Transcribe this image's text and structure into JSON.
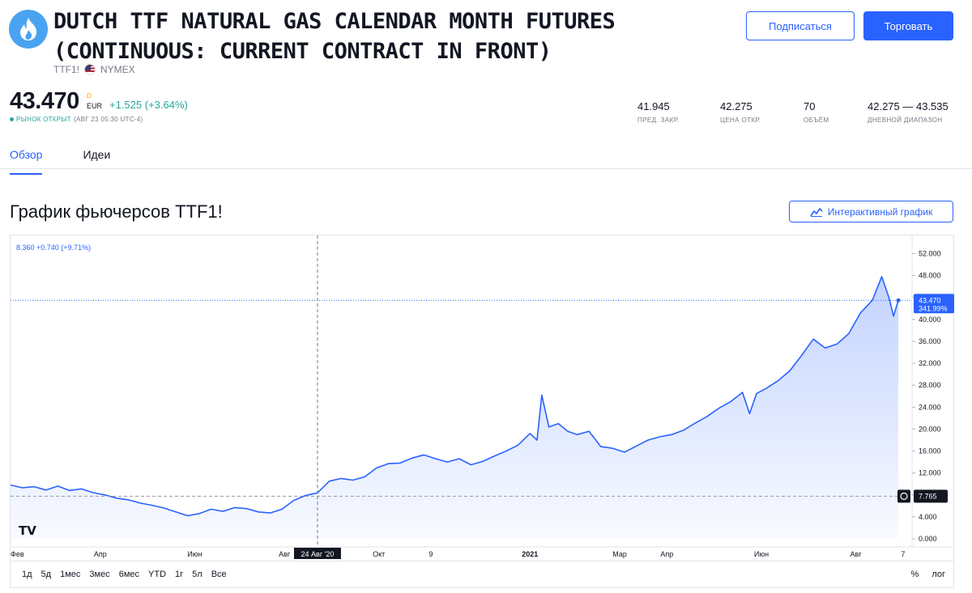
{
  "header": {
    "title": "DUTCH TTF NATURAL GAS CALENDAR MONTH FUTURES (CONTINUOUS: CURRENT CONTRACT IN FRONT)",
    "symbol": "TTF1!",
    "exchange": "NYMEX",
    "subscribe_label": "Подписаться",
    "trade_label": "Торговать"
  },
  "quote": {
    "price": "43.470",
    "currency_marker": "D",
    "currency": "EUR",
    "change": "+1.525 (+3.64%)",
    "market_status": "РЫНОК ОТКРЫТ",
    "market_time": "(АВГ 23 05:30 UTC-4)"
  },
  "stats": [
    {
      "value": "41.945",
      "label": "ПРЕД. ЗАКР."
    },
    {
      "value": "42.275",
      "label": "ЦЕНА ОТКР."
    },
    {
      "value": "70",
      "label": "ОБЪЁМ"
    },
    {
      "value": "42.275 — 43.535",
      "label": "ДНЕВНОЙ ДИАПАЗОН"
    }
  ],
  "tabs": [
    {
      "label": "Обзор",
      "active": true
    },
    {
      "label": "Идеи",
      "active": false
    }
  ],
  "chart_section": {
    "title": "График фьючерсов TTF1!",
    "interactive_label": "Интерактивный график",
    "crosshair_readout": "8.360 +0.740 (+9.71%)",
    "crosshair_date_label": "24 Авг '20",
    "last_price_label": "43.470",
    "last_pct_label": "341.99%",
    "baseline_label": "7.765"
  },
  "range_buttons": [
    "1д",
    "5д",
    "1мес",
    "3мес",
    "6мес",
    "YTD",
    "1г",
    "5л",
    "Все"
  ],
  "scale_buttons": [
    "%",
    "лог"
  ],
  "colors": {
    "accent": "#2962ff",
    "positive": "#26a69a",
    "line": "#2962ff",
    "logo": "#4aa3f0"
  },
  "chart_data": {
    "type": "area",
    "title": "",
    "xlabel": "",
    "ylabel": "",
    "ylim": [
      0,
      54
    ],
    "grid": false,
    "y_ticks": [
      "0.000",
      "4.000",
      "8.000",
      "12.000",
      "16.000",
      "20.000",
      "24.000",
      "28.000",
      "32.000",
      "36.000",
      "40.000",
      "44.000",
      "48.000",
      "52.000"
    ],
    "x_ticks": [
      {
        "label": "Фев",
        "t": 0
      },
      {
        "label": "Апр",
        "t": 1.9
      },
      {
        "label": "Июн",
        "t": 3.9
      },
      {
        "label": "Авг",
        "t": 5.8
      },
      {
        "label": "Окт",
        "t": 7.8
      },
      {
        "label": "9",
        "t": 8.9
      },
      {
        "label": "2021",
        "t": 11.0
      },
      {
        "label": "Мар",
        "t": 12.9
      },
      {
        "label": "Апр",
        "t": 13.9
      },
      {
        "label": "Июн",
        "t": 15.9
      },
      {
        "label": "Авг",
        "t": 17.9
      },
      {
        "label": "7",
        "t": 18.9
      }
    ],
    "series": [
      {
        "points": [
          [
            0.0,
            9.8
          ],
          [
            0.25,
            9.3
          ],
          [
            0.5,
            9.5
          ],
          [
            0.75,
            8.9
          ],
          [
            1.0,
            9.6
          ],
          [
            1.25,
            8.8
          ],
          [
            1.5,
            9.1
          ],
          [
            1.75,
            8.4
          ],
          [
            2.0,
            8.0
          ],
          [
            2.25,
            7.4
          ],
          [
            2.5,
            7.1
          ],
          [
            2.75,
            6.5
          ],
          [
            3.0,
            6.1
          ],
          [
            3.25,
            5.6
          ],
          [
            3.5,
            4.9
          ],
          [
            3.75,
            4.2
          ],
          [
            4.0,
            4.6
          ],
          [
            4.25,
            5.4
          ],
          [
            4.5,
            5.0
          ],
          [
            4.75,
            5.7
          ],
          [
            5.0,
            5.5
          ],
          [
            5.25,
            4.9
          ],
          [
            5.5,
            4.7
          ],
          [
            5.75,
            5.4
          ],
          [
            6.0,
            7.0
          ],
          [
            6.25,
            7.9
          ],
          [
            6.5,
            8.36
          ],
          [
            6.75,
            10.5
          ],
          [
            7.0,
            11.0
          ],
          [
            7.25,
            10.7
          ],
          [
            7.5,
            11.3
          ],
          [
            7.75,
            12.9
          ],
          [
            8.0,
            13.7
          ],
          [
            8.25,
            13.8
          ],
          [
            8.5,
            14.7
          ],
          [
            8.75,
            15.3
          ],
          [
            9.0,
            14.6
          ],
          [
            9.25,
            14.0
          ],
          [
            9.5,
            14.6
          ],
          [
            9.75,
            13.5
          ],
          [
            10.0,
            14.1
          ],
          [
            10.25,
            15.1
          ],
          [
            10.5,
            16.0
          ],
          [
            10.75,
            17.1
          ],
          [
            11.0,
            19.2
          ],
          [
            11.15,
            18.0
          ],
          [
            11.25,
            26.2
          ],
          [
            11.4,
            20.4
          ],
          [
            11.6,
            21.0
          ],
          [
            11.8,
            19.6
          ],
          [
            12.0,
            19.0
          ],
          [
            12.25,
            19.6
          ],
          [
            12.5,
            16.8
          ],
          [
            12.75,
            16.5
          ],
          [
            13.0,
            15.8
          ],
          [
            13.25,
            16.9
          ],
          [
            13.5,
            18.0
          ],
          [
            13.75,
            18.6
          ],
          [
            14.0,
            19.0
          ],
          [
            14.25,
            19.8
          ],
          [
            14.5,
            21.1
          ],
          [
            14.75,
            22.3
          ],
          [
            15.0,
            23.8
          ],
          [
            15.25,
            25.0
          ],
          [
            15.5,
            26.7
          ],
          [
            15.65,
            22.8
          ],
          [
            15.8,
            26.5
          ],
          [
            16.0,
            27.4
          ],
          [
            16.25,
            28.8
          ],
          [
            16.5,
            30.6
          ],
          [
            16.75,
            33.4
          ],
          [
            17.0,
            36.4
          ],
          [
            17.25,
            34.8
          ],
          [
            17.5,
            35.5
          ],
          [
            17.75,
            37.4
          ],
          [
            18.0,
            41.2
          ],
          [
            18.25,
            43.5
          ],
          [
            18.45,
            47.8
          ],
          [
            18.6,
            44.0
          ],
          [
            18.7,
            40.6
          ],
          [
            18.8,
            43.47
          ]
        ]
      }
    ]
  }
}
